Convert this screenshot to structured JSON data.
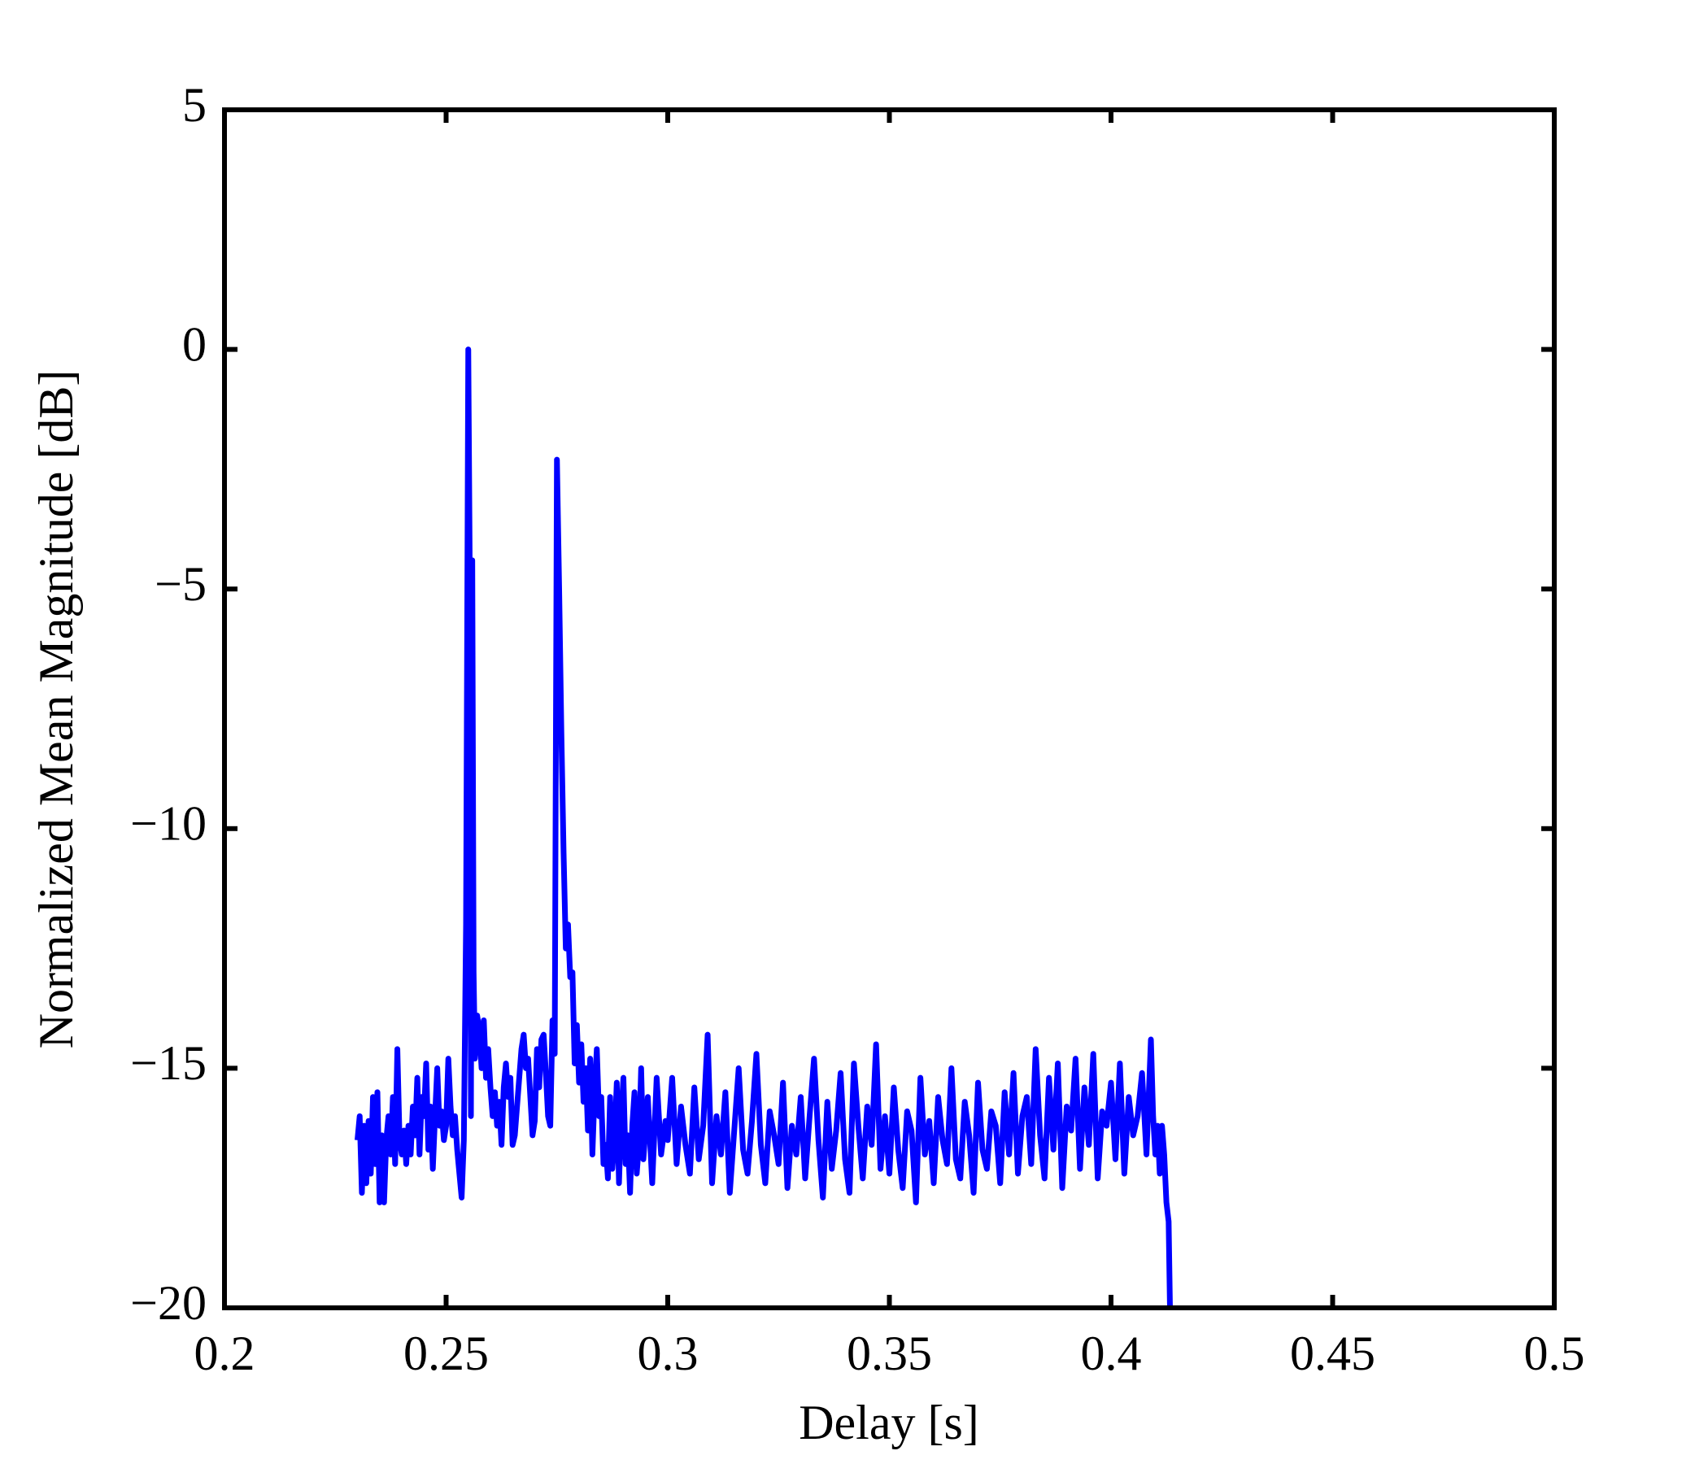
{
  "chart_data": {
    "type": "line",
    "xlabel": "Delay [s]",
    "ylabel": "Normalized Mean Magnitude [dB]",
    "xlim": [
      0.2,
      0.5
    ],
    "xticks": [
      0.2,
      0.25,
      0.3,
      0.35,
      0.4,
      0.45,
      0.5
    ],
    "ylim": [
      -20,
      5
    ],
    "yticks": [
      {
        "value": -20,
        "label": "−20"
      },
      {
        "value": -15,
        "label": "−15"
      },
      {
        "value": -10,
        "label": "−10"
      },
      {
        "value": -5,
        "label": "−5"
      },
      0,
      5
    ],
    "grid": false,
    "series": [
      {
        "color": "#0000ff",
        "x": [
          0.23,
          0.2305,
          0.231,
          0.2315,
          0.232,
          0.2325,
          0.233,
          0.2335,
          0.234,
          0.2345,
          0.235,
          0.2355,
          0.236,
          0.2365,
          0.237,
          0.2375,
          0.238,
          0.2385,
          0.239,
          0.2395,
          0.24,
          0.2405,
          0.241,
          0.2415,
          0.242,
          0.2425,
          0.243,
          0.2435,
          0.244,
          0.2445,
          0.245,
          0.2455,
          0.246,
          0.2465,
          0.247,
          0.2475,
          0.248,
          0.2485,
          0.249,
          0.2495,
          0.25,
          0.2505,
          0.251,
          0.2515,
          0.252,
          0.2525,
          0.253,
          0.2535,
          0.254,
          0.2545,
          0.255,
          0.2553,
          0.2556,
          0.2559,
          0.2562,
          0.2565,
          0.257,
          0.2575,
          0.258,
          0.2585,
          0.259,
          0.2595,
          0.26,
          0.2605,
          0.261,
          0.2615,
          0.262,
          0.2625,
          0.263,
          0.2635,
          0.264,
          0.2645,
          0.265,
          0.2655,
          0.266,
          0.2665,
          0.267,
          0.2675,
          0.268,
          0.2685,
          0.269,
          0.2695,
          0.27,
          0.2705,
          0.271,
          0.2715,
          0.272,
          0.2725,
          0.273,
          0.2735,
          0.274,
          0.2745,
          0.275,
          0.2755,
          0.276,
          0.2765,
          0.277,
          0.2775,
          0.278,
          0.2785,
          0.279,
          0.2795,
          0.28,
          0.2805,
          0.281,
          0.2815,
          0.282,
          0.2825,
          0.283,
          0.2835,
          0.284,
          0.2845,
          0.285,
          0.2855,
          0.286,
          0.2865,
          0.287,
          0.2875,
          0.288,
          0.2885,
          0.289,
          0.2895,
          0.29,
          0.2905,
          0.291,
          0.2915,
          0.292,
          0.2925,
          0.293,
          0.2935,
          0.294,
          0.2945,
          0.2955,
          0.2965,
          0.2975,
          0.2985,
          0.2995,
          0.3,
          0.301,
          0.302,
          0.303,
          0.304,
          0.305,
          0.306,
          0.307,
          0.308,
          0.309,
          0.31,
          0.311,
          0.312,
          0.313,
          0.314,
          0.315,
          0.316,
          0.317,
          0.318,
          0.319,
          0.32,
          0.321,
          0.322,
          0.323,
          0.324,
          0.325,
          0.326,
          0.327,
          0.328,
          0.329,
          0.33,
          0.331,
          0.332,
          0.333,
          0.334,
          0.335,
          0.336,
          0.337,
          0.338,
          0.339,
          0.34,
          0.341,
          0.342,
          0.343,
          0.344,
          0.345,
          0.346,
          0.347,
          0.348,
          0.349,
          0.35,
          0.351,
          0.352,
          0.353,
          0.354,
          0.355,
          0.356,
          0.357,
          0.358,
          0.359,
          0.36,
          0.361,
          0.362,
          0.363,
          0.364,
          0.365,
          0.366,
          0.367,
          0.368,
          0.369,
          0.37,
          0.371,
          0.372,
          0.373,
          0.374,
          0.375,
          0.376,
          0.377,
          0.378,
          0.379,
          0.38,
          0.381,
          0.382,
          0.383,
          0.384,
          0.385,
          0.386,
          0.387,
          0.388,
          0.389,
          0.39,
          0.391,
          0.392,
          0.393,
          0.394,
          0.395,
          0.396,
          0.397,
          0.398,
          0.399,
          0.4,
          0.401,
          0.402,
          0.403,
          0.404,
          0.405,
          0.406,
          0.407,
          0.408,
          0.409,
          0.4095,
          0.41,
          0.4105,
          0.411,
          0.4115,
          0.412,
          0.4125,
          0.413,
          0.4133
        ],
        "values": [
          -16.5,
          -16.0,
          -17.6,
          -16.2,
          -17.4,
          -16.1,
          -17.2,
          -15.6,
          -17.0,
          -15.5,
          -17.8,
          -16.4,
          -17.8,
          -16.5,
          -16.0,
          -16.8,
          -15.6,
          -17.0,
          -14.6,
          -16.5,
          -16.8,
          -16.3,
          -17.0,
          -16.2,
          -16.8,
          -15.8,
          -16.4,
          -15.2,
          -16.8,
          -15.6,
          -16.0,
          -14.9,
          -16.7,
          -15.8,
          -17.1,
          -16.0,
          -15.0,
          -16.2,
          -15.9,
          -16.5,
          -16.2,
          -14.8,
          -15.8,
          -16.4,
          -16.0,
          -16.7,
          -17.2,
          -17.7,
          -16.5,
          -12.0,
          0,
          -4.2,
          -16.0,
          -4.4,
          -13.0,
          -14.8,
          -13.9,
          -14.2,
          -15.0,
          -14.0,
          -15.2,
          -14.6,
          -15.4,
          -16.0,
          -15.5,
          -16.2,
          -15.7,
          -16.6,
          -15.4,
          -14.9,
          -15.6,
          -15.2,
          -16.6,
          -16.4,
          -15.8,
          -15.2,
          -14.6,
          -14.3,
          -15.0,
          -14.8,
          -15.6,
          -16.4,
          -16.1,
          -14.6,
          -15.4,
          -14.4,
          -14.3,
          -15.1,
          -16.0,
          -16.2,
          -14.0,
          -14.7,
          -2.3,
          -5.0,
          -8.0,
          -10.5,
          -12.5,
          -12.0,
          -13.1,
          -13.0,
          -14.9,
          -14.1,
          -15.3,
          -14.5,
          -15.7,
          -15.0,
          -16.3,
          -14.8,
          -16.8,
          -15.5,
          -14.6,
          -16.0,
          -15.6,
          -17.0,
          -16.6,
          -17.3,
          -15.6,
          -17.1,
          -16.5,
          -15.3,
          -17.4,
          -16.0,
          -15.2,
          -17.0,
          -16.4,
          -17.6,
          -16.2,
          -15.5,
          -17.2,
          -16.6,
          -15.0,
          -16.9,
          -15.6,
          -17.4,
          -15.2,
          -16.8,
          -16.1,
          -16.5,
          -15.2,
          -17.0,
          -15.8,
          -16.6,
          -17.2,
          -15.4,
          -16.9,
          -16.2,
          -14.3,
          -17.4,
          -16.0,
          -16.8,
          -15.5,
          -17.6,
          -16.3,
          -15.0,
          -16.7,
          -17.2,
          -16.1,
          -14.7,
          -16.6,
          -17.4,
          -15.9,
          -16.4,
          -17.0,
          -15.3,
          -17.5,
          -16.2,
          -16.8,
          -15.6,
          -17.3,
          -16.0,
          -14.8,
          -16.5,
          -17.7,
          -15.7,
          -17.1,
          -16.3,
          -15.1,
          -16.9,
          -17.6,
          -14.9,
          -16.2,
          -17.3,
          -15.8,
          -16.6,
          -14.5,
          -17.1,
          -16.0,
          -17.2,
          -15.4,
          -16.7,
          -17.5,
          -15.9,
          -16.3,
          -17.8,
          -15.2,
          -16.8,
          -16.1,
          -17.4,
          -15.6,
          -16.5,
          -17.0,
          -15.0,
          -16.9,
          -17.3,
          -15.7,
          -16.4,
          -17.6,
          -15.3,
          -16.7,
          -17.1,
          -15.9,
          -16.2,
          -17.4,
          -15.5,
          -16.8,
          -15.1,
          -17.2,
          -16.0,
          -15.6,
          -17.0,
          -14.6,
          -16.4,
          -17.3,
          -15.2,
          -16.7,
          -14.9,
          -17.5,
          -15.8,
          -16.3,
          -14.8,
          -17.1,
          -15.4,
          -16.6,
          -14.7,
          -17.3,
          -15.9,
          -16.2,
          -15.3,
          -16.9,
          -14.9,
          -17.2,
          -15.6,
          -16.4,
          -16.0,
          -15.1,
          -16.8,
          -14.4,
          -16.0,
          -16.8,
          -16.2,
          -17.2,
          -16.2,
          -16.8,
          -17.8,
          -18.2,
          -20
        ]
      }
    ]
  }
}
